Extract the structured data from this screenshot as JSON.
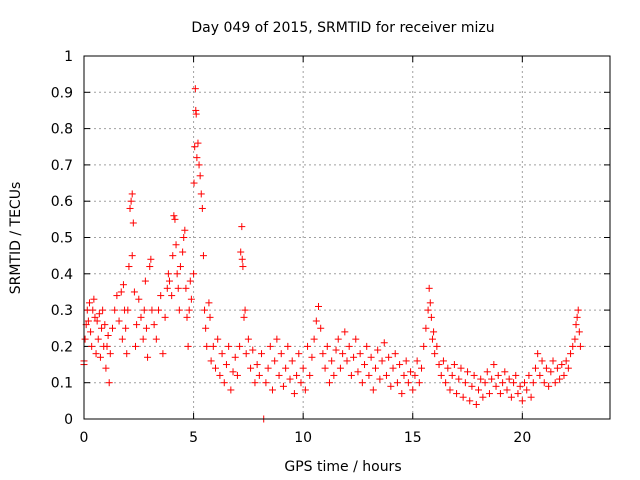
{
  "chart_data": {
    "type": "scatter",
    "title": "Day 049 of 2015, SRMTID for receiver mizu",
    "xlabel": "GPS time / hours",
    "ylabel": "SRMTID / TECUs",
    "xlim": [
      0,
      24
    ],
    "ylim": [
      0,
      1
    ],
    "x_ticks": [
      0,
      5,
      10,
      15,
      20
    ],
    "x_tick_labels": [
      "0",
      "5",
      "10",
      "15",
      "20"
    ],
    "y_ticks": [
      0,
      0.1,
      0.2,
      0.3,
      0.4,
      0.5,
      0.6,
      0.7,
      0.8,
      0.9,
      1
    ],
    "y_tick_labels": [
      "0",
      "0.1",
      "0.2",
      "0.3",
      "0.4",
      "0.5",
      "0.6",
      "0.7",
      "0.8",
      "0.9",
      "1"
    ],
    "grid": true,
    "marker": "plus",
    "color": "#ff0000",
    "series": [
      {
        "name": "SRMTID",
        "points": [
          [
            0.0,
            0.15
          ],
          [
            0.0,
            0.16
          ],
          [
            0.05,
            0.22
          ],
          [
            0.1,
            0.26
          ],
          [
            0.15,
            0.3
          ],
          [
            0.2,
            0.27
          ],
          [
            0.25,
            0.32
          ],
          [
            0.3,
            0.24
          ],
          [
            0.35,
            0.2
          ],
          [
            0.4,
            0.3
          ],
          [
            0.45,
            0.33
          ],
          [
            0.5,
            0.28
          ],
          [
            0.55,
            0.18
          ],
          [
            0.6,
            0.27
          ],
          [
            0.65,
            0.22
          ],
          [
            0.7,
            0.29
          ],
          [
            0.75,
            0.17
          ],
          [
            0.8,
            0.25
          ],
          [
            0.85,
            0.3
          ],
          [
            0.9,
            0.2
          ],
          [
            0.95,
            0.26
          ],
          [
            1.0,
            0.14
          ],
          [
            1.05,
            0.2
          ],
          [
            1.1,
            0.23
          ],
          [
            1.15,
            0.1
          ],
          [
            1.2,
            0.18
          ],
          [
            1.3,
            0.25
          ],
          [
            1.4,
            0.3
          ],
          [
            1.5,
            0.34
          ],
          [
            1.6,
            0.27
          ],
          [
            1.7,
            0.35
          ],
          [
            1.75,
            0.22
          ],
          [
            1.8,
            0.37
          ],
          [
            1.85,
            0.3
          ],
          [
            1.9,
            0.25
          ],
          [
            1.95,
            0.18
          ],
          [
            2.0,
            0.3
          ],
          [
            2.05,
            0.42
          ],
          [
            2.1,
            0.58
          ],
          [
            2.15,
            0.6
          ],
          [
            2.2,
            0.62
          ],
          [
            2.2,
            0.45
          ],
          [
            2.25,
            0.54
          ],
          [
            2.3,
            0.35
          ],
          [
            2.35,
            0.2
          ],
          [
            2.4,
            0.26
          ],
          [
            2.5,
            0.33
          ],
          [
            2.6,
            0.28
          ],
          [
            2.7,
            0.22
          ],
          [
            2.75,
            0.3
          ],
          [
            2.8,
            0.38
          ],
          [
            2.85,
            0.25
          ],
          [
            2.9,
            0.17
          ],
          [
            3.0,
            0.42
          ],
          [
            3.05,
            0.44
          ],
          [
            3.1,
            0.3
          ],
          [
            3.2,
            0.26
          ],
          [
            3.3,
            0.22
          ],
          [
            3.4,
            0.3
          ],
          [
            3.5,
            0.34
          ],
          [
            3.6,
            0.18
          ],
          [
            3.7,
            0.28
          ],
          [
            3.8,
            0.36
          ],
          [
            3.85,
            0.4
          ],
          [
            3.9,
            0.38
          ],
          [
            4.0,
            0.34
          ],
          [
            4.05,
            0.45
          ],
          [
            4.1,
            0.56
          ],
          [
            4.15,
            0.55
          ],
          [
            4.2,
            0.48
          ],
          [
            4.25,
            0.4
          ],
          [
            4.3,
            0.36
          ],
          [
            4.35,
            0.3
          ],
          [
            4.4,
            0.42
          ],
          [
            4.5,
            0.46
          ],
          [
            4.55,
            0.5
          ],
          [
            4.6,
            0.52
          ],
          [
            4.65,
            0.36
          ],
          [
            4.7,
            0.28
          ],
          [
            4.75,
            0.2
          ],
          [
            4.8,
            0.3
          ],
          [
            4.85,
            0.38
          ],
          [
            4.9,
            0.33
          ],
          [
            5.0,
            0.4
          ],
          [
            5.02,
            0.65
          ],
          [
            5.05,
            0.75
          ],
          [
            5.08,
            0.91
          ],
          [
            5.1,
            0.85
          ],
          [
            5.12,
            0.84
          ],
          [
            5.15,
            0.72
          ],
          [
            5.2,
            0.76
          ],
          [
            5.25,
            0.7
          ],
          [
            5.3,
            0.67
          ],
          [
            5.35,
            0.62
          ],
          [
            5.4,
            0.58
          ],
          [
            5.45,
            0.45
          ],
          [
            5.5,
            0.3
          ],
          [
            5.55,
            0.25
          ],
          [
            5.6,
            0.2
          ],
          [
            5.7,
            0.32
          ],
          [
            5.75,
            0.28
          ],
          [
            5.8,
            0.16
          ],
          [
            5.9,
            0.2
          ],
          [
            6.0,
            0.14
          ],
          [
            6.1,
            0.22
          ],
          [
            6.2,
            0.12
          ],
          [
            6.3,
            0.18
          ],
          [
            6.4,
            0.1
          ],
          [
            6.5,
            0.15
          ],
          [
            6.6,
            0.2
          ],
          [
            6.7,
            0.08
          ],
          [
            6.8,
            0.13
          ],
          [
            6.9,
            0.17
          ],
          [
            7.0,
            0.12
          ],
          [
            7.1,
            0.2
          ],
          [
            7.15,
            0.46
          ],
          [
            7.2,
            0.53
          ],
          [
            7.22,
            0.44
          ],
          [
            7.25,
            0.42
          ],
          [
            7.3,
            0.28
          ],
          [
            7.35,
            0.3
          ],
          [
            7.4,
            0.18
          ],
          [
            7.5,
            0.22
          ],
          [
            7.6,
            0.14
          ],
          [
            7.7,
            0.19
          ],
          [
            7.8,
            0.1
          ],
          [
            7.9,
            0.15
          ],
          [
            8.0,
            0.12
          ],
          [
            8.1,
            0.18
          ],
          [
            8.2,
            0.0
          ],
          [
            8.3,
            0.1
          ],
          [
            8.4,
            0.14
          ],
          [
            8.5,
            0.2
          ],
          [
            8.6,
            0.08
          ],
          [
            8.7,
            0.16
          ],
          [
            8.8,
            0.22
          ],
          [
            8.9,
            0.12
          ],
          [
            9.0,
            0.18
          ],
          [
            9.1,
            0.09
          ],
          [
            9.2,
            0.14
          ],
          [
            9.3,
            0.2
          ],
          [
            9.4,
            0.11
          ],
          [
            9.5,
            0.16
          ],
          [
            9.6,
            0.07
          ],
          [
            9.7,
            0.12
          ],
          [
            9.8,
            0.18
          ],
          [
            9.9,
            0.1
          ],
          [
            10.0,
            0.14
          ],
          [
            10.1,
            0.08
          ],
          [
            10.2,
            0.2
          ],
          [
            10.3,
            0.12
          ],
          [
            10.4,
            0.17
          ],
          [
            10.5,
            0.22
          ],
          [
            10.6,
            0.27
          ],
          [
            10.7,
            0.31
          ],
          [
            10.8,
            0.25
          ],
          [
            10.9,
            0.18
          ],
          [
            11.0,
            0.14
          ],
          [
            11.1,
            0.2
          ],
          [
            11.2,
            0.1
          ],
          [
            11.3,
            0.16
          ],
          [
            11.4,
            0.12
          ],
          [
            11.5,
            0.19
          ],
          [
            11.6,
            0.22
          ],
          [
            11.7,
            0.14
          ],
          [
            11.8,
            0.18
          ],
          [
            11.9,
            0.24
          ],
          [
            12.0,
            0.16
          ],
          [
            12.1,
            0.2
          ],
          [
            12.2,
            0.12
          ],
          [
            12.3,
            0.17
          ],
          [
            12.4,
            0.22
          ],
          [
            12.5,
            0.13
          ],
          [
            12.6,
            0.18
          ],
          [
            12.7,
            0.1
          ],
          [
            12.8,
            0.15
          ],
          [
            12.9,
            0.2
          ],
          [
            13.0,
            0.12
          ],
          [
            13.1,
            0.17
          ],
          [
            13.2,
            0.08
          ],
          [
            13.3,
            0.14
          ],
          [
            13.4,
            0.19
          ],
          [
            13.5,
            0.11
          ],
          [
            13.6,
            0.16
          ],
          [
            13.7,
            0.21
          ],
          [
            13.8,
            0.12
          ],
          [
            13.9,
            0.17
          ],
          [
            14.0,
            0.09
          ],
          [
            14.1,
            0.14
          ],
          [
            14.2,
            0.18
          ],
          [
            14.3,
            0.1
          ],
          [
            14.4,
            0.15
          ],
          [
            14.5,
            0.07
          ],
          [
            14.6,
            0.12
          ],
          [
            14.7,
            0.16
          ],
          [
            14.8,
            0.1
          ],
          [
            14.9,
            0.13
          ],
          [
            15.0,
            0.08
          ],
          [
            15.1,
            0.12
          ],
          [
            15.2,
            0.16
          ],
          [
            15.3,
            0.1
          ],
          [
            15.4,
            0.14
          ],
          [
            15.5,
            0.2
          ],
          [
            15.6,
            0.25
          ],
          [
            15.7,
            0.3
          ],
          [
            15.75,
            0.36
          ],
          [
            15.8,
            0.32
          ],
          [
            15.85,
            0.28
          ],
          [
            15.9,
            0.22
          ],
          [
            15.95,
            0.24
          ],
          [
            16.0,
            0.18
          ],
          [
            16.1,
            0.2
          ],
          [
            16.2,
            0.15
          ],
          [
            16.3,
            0.12
          ],
          [
            16.4,
            0.16
          ],
          [
            16.5,
            0.1
          ],
          [
            16.6,
            0.14
          ],
          [
            16.7,
            0.08
          ],
          [
            16.8,
            0.12
          ],
          [
            16.9,
            0.15
          ],
          [
            17.0,
            0.07
          ],
          [
            17.1,
            0.11
          ],
          [
            17.2,
            0.14
          ],
          [
            17.3,
            0.06
          ],
          [
            17.4,
            0.1
          ],
          [
            17.5,
            0.13
          ],
          [
            17.6,
            0.05
          ],
          [
            17.7,
            0.09
          ],
          [
            17.8,
            0.12
          ],
          [
            17.9,
            0.04
          ],
          [
            18.0,
            0.08
          ],
          [
            18.1,
            0.11
          ],
          [
            18.2,
            0.06
          ],
          [
            18.3,
            0.1
          ],
          [
            18.4,
            0.13
          ],
          [
            18.5,
            0.07
          ],
          [
            18.6,
            0.11
          ],
          [
            18.7,
            0.15
          ],
          [
            18.8,
            0.09
          ],
          [
            18.9,
            0.12
          ],
          [
            19.0,
            0.07
          ],
          [
            19.1,
            0.1
          ],
          [
            19.2,
            0.13
          ],
          [
            19.3,
            0.08
          ],
          [
            19.4,
            0.11
          ],
          [
            19.5,
            0.06
          ],
          [
            19.6,
            0.1
          ],
          [
            19.7,
            0.12
          ],
          [
            19.8,
            0.07
          ],
          [
            19.9,
            0.09
          ],
          [
            20.0,
            0.05
          ],
          [
            20.1,
            0.1
          ],
          [
            20.2,
            0.08
          ],
          [
            20.3,
            0.12
          ],
          [
            20.4,
            0.06
          ],
          [
            20.5,
            0.1
          ],
          [
            20.6,
            0.14
          ],
          [
            20.7,
            0.18
          ],
          [
            20.8,
            0.12
          ],
          [
            20.9,
            0.16
          ],
          [
            21.0,
            0.1
          ],
          [
            21.1,
            0.14
          ],
          [
            21.2,
            0.09
          ],
          [
            21.3,
            0.13
          ],
          [
            21.4,
            0.16
          ],
          [
            21.5,
            0.1
          ],
          [
            21.6,
            0.14
          ],
          [
            21.7,
            0.11
          ],
          [
            21.8,
            0.15
          ],
          [
            21.9,
            0.12
          ],
          [
            22.0,
            0.16
          ],
          [
            22.1,
            0.14
          ],
          [
            22.2,
            0.18
          ],
          [
            22.3,
            0.2
          ],
          [
            22.4,
            0.22
          ],
          [
            22.45,
            0.26
          ],
          [
            22.5,
            0.28
          ],
          [
            22.55,
            0.3
          ],
          [
            22.6,
            0.24
          ],
          [
            22.65,
            0.2
          ]
        ]
      }
    ]
  }
}
